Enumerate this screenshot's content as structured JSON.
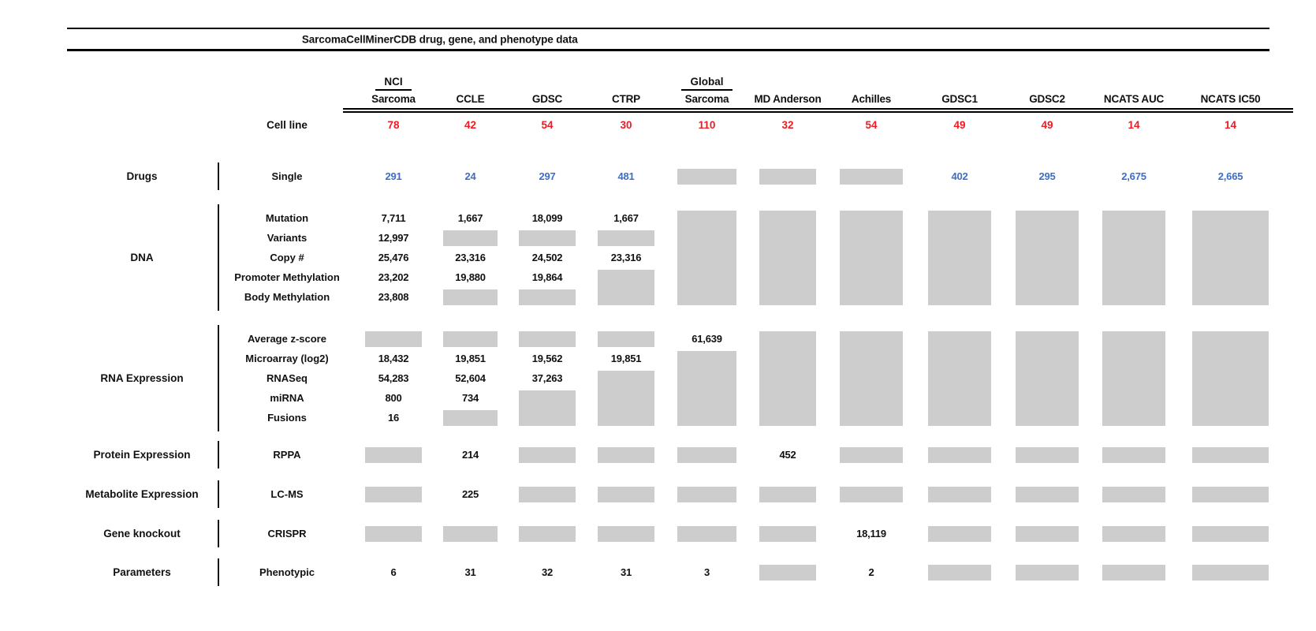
{
  "chart_data": {
    "type": "table",
    "title": "SarcomaCellMinerCDB drug, gene, and phenotype data",
    "missing_data_marker": "gray-box",
    "cell_line_label": "Cell line",
    "cell_line_count_color": "#ed1c24",
    "drug_value_color": "#3e6dc5",
    "missing_box_color": "#cdcdcd",
    "columns": [
      {
        "top": "NCI",
        "name": "Sarcoma",
        "count": "78"
      },
      {
        "top": "",
        "name": "CCLE",
        "count": "42"
      },
      {
        "top": "",
        "name": "GDSC",
        "count": "54"
      },
      {
        "top": "",
        "name": "CTRP",
        "count": "30"
      },
      {
        "top": "Global",
        "name": "Sarcoma",
        "count": "110"
      },
      {
        "top": "",
        "name": "MD Anderson",
        "count": "32"
      },
      {
        "top": "",
        "name": "Achilles",
        "count": "54"
      },
      {
        "top": "",
        "name": "GDSC1",
        "count": "49"
      },
      {
        "top": "",
        "name": "GDSC2",
        "count": "49"
      },
      {
        "top": "",
        "name": "NCATS AUC",
        "count": "14"
      },
      {
        "top": "",
        "name": "NCATS IC50",
        "count": "14"
      }
    ],
    "sections": [
      {
        "category": "Drugs",
        "rows": [
          {
            "label": "Single",
            "cells": [
              {
                "t": "v",
                "v": "291",
                "c": "blue"
              },
              {
                "t": "v",
                "v": "24",
                "c": "blue"
              },
              {
                "t": "v",
                "v": "297",
                "c": "blue"
              },
              {
                "t": "v",
                "v": "481",
                "c": "blue"
              },
              {
                "t": "g"
              },
              {
                "t": "g"
              },
              {
                "t": "g"
              },
              {
                "t": "v",
                "v": "402",
                "c": "blue"
              },
              {
                "t": "v",
                "v": "295",
                "c": "blue"
              },
              {
                "t": "v",
                "v": "2,675",
                "c": "blue"
              },
              {
                "t": "v",
                "v": "2,665",
                "c": "blue"
              }
            ]
          }
        ]
      },
      {
        "category": "DNA",
        "rows": [
          {
            "label": "Mutation",
            "cells": [
              {
                "t": "v",
                "v": "7,711"
              },
              {
                "t": "v",
                "v": "1,667"
              },
              {
                "t": "v",
                "v": "18,099"
              },
              {
                "t": "v",
                "v": "1,667"
              },
              {
                "t": "g",
                "span": 5
              },
              {
                "t": "g",
                "span": 5
              },
              {
                "t": "g",
                "span": 5
              },
              {
                "t": "g",
                "span": 5
              },
              {
                "t": "g",
                "span": 5
              },
              {
                "t": "g",
                "span": 5
              },
              {
                "t": "g",
                "span": 5
              }
            ]
          },
          {
            "label": "Variants",
            "cells": [
              {
                "t": "v",
                "v": "12,997"
              },
              {
                "t": "g"
              },
              {
                "t": "g"
              },
              {
                "t": "g"
              },
              {
                "t": "x"
              },
              {
                "t": "x"
              },
              {
                "t": "x"
              },
              {
                "t": "x"
              },
              {
                "t": "x"
              },
              {
                "t": "x"
              },
              {
                "t": "x"
              }
            ]
          },
          {
            "label": "Copy #",
            "cells": [
              {
                "t": "v",
                "v": "25,476"
              },
              {
                "t": "v",
                "v": "23,316"
              },
              {
                "t": "v",
                "v": "24,502"
              },
              {
                "t": "v",
                "v": "23,316"
              },
              {
                "t": "x"
              },
              {
                "t": "x"
              },
              {
                "t": "x"
              },
              {
                "t": "x"
              },
              {
                "t": "x"
              },
              {
                "t": "x"
              },
              {
                "t": "x"
              }
            ]
          },
          {
            "label": "Promoter Methylation",
            "cells": [
              {
                "t": "v",
                "v": "23,202"
              },
              {
                "t": "v",
                "v": "19,880"
              },
              {
                "t": "v",
                "v": "19,864"
              },
              {
                "t": "g",
                "span": 2
              },
              {
                "t": "x"
              },
              {
                "t": "x"
              },
              {
                "t": "x"
              },
              {
                "t": "x"
              },
              {
                "t": "x"
              },
              {
                "t": "x"
              },
              {
                "t": "x"
              }
            ]
          },
          {
            "label": "Body Methylation",
            "cells": [
              {
                "t": "v",
                "v": "23,808"
              },
              {
                "t": "g"
              },
              {
                "t": "g"
              },
              {
                "t": "x"
              },
              {
                "t": "x"
              },
              {
                "t": "x"
              },
              {
                "t": "x"
              },
              {
                "t": "x"
              },
              {
                "t": "x"
              },
              {
                "t": "x"
              },
              {
                "t": "x"
              }
            ]
          }
        ]
      },
      {
        "category": "RNA Expression",
        "rows": [
          {
            "label": "Average z-score",
            "cells": [
              {
                "t": "g"
              },
              {
                "t": "g"
              },
              {
                "t": "g"
              },
              {
                "t": "g"
              },
              {
                "t": "v",
                "v": "61,639"
              },
              {
                "t": "g",
                "span": 5
              },
              {
                "t": "g",
                "span": 5
              },
              {
                "t": "g",
                "span": 5
              },
              {
                "t": "g",
                "span": 5
              },
              {
                "t": "g",
                "span": 5
              },
              {
                "t": "g",
                "span": 5
              }
            ]
          },
          {
            "label": "Microarray (log2)",
            "cells": [
              {
                "t": "v",
                "v": "18,432"
              },
              {
                "t": "v",
                "v": "19,851"
              },
              {
                "t": "v",
                "v": "19,562"
              },
              {
                "t": "v",
                "v": "19,851"
              },
              {
                "t": "g",
                "span": 4
              },
              {
                "t": "x"
              },
              {
                "t": "x"
              },
              {
                "t": "x"
              },
              {
                "t": "x"
              },
              {
                "t": "x"
              },
              {
                "t": "x"
              }
            ]
          },
          {
            "label": "RNASeq",
            "cells": [
              {
                "t": "v",
                "v": "54,283"
              },
              {
                "t": "v",
                "v": "52,604"
              },
              {
                "t": "v",
                "v": "37,263"
              },
              {
                "t": "g",
                "span": 3
              },
              {
                "t": "x"
              },
              {
                "t": "x"
              },
              {
                "t": "x"
              },
              {
                "t": "x"
              },
              {
                "t": "x"
              },
              {
                "t": "x"
              },
              {
                "t": "x"
              }
            ]
          },
          {
            "label": "miRNA",
            "cells": [
              {
                "t": "v",
                "v": "800"
              },
              {
                "t": "v",
                "v": "734"
              },
              {
                "t": "g",
                "span": 2
              },
              {
                "t": "x"
              },
              {
                "t": "x"
              },
              {
                "t": "x"
              },
              {
                "t": "x"
              },
              {
                "t": "x"
              },
              {
                "t": "x"
              },
              {
                "t": "x"
              },
              {
                "t": "x"
              }
            ]
          },
          {
            "label": "Fusions",
            "cells": [
              {
                "t": "v",
                "v": "16"
              },
              {
                "t": "g"
              },
              {
                "t": "x"
              },
              {
                "t": "x"
              },
              {
                "t": "x"
              },
              {
                "t": "x"
              },
              {
                "t": "x"
              },
              {
                "t": "x"
              },
              {
                "t": "x"
              },
              {
                "t": "x"
              },
              {
                "t": "x"
              }
            ]
          }
        ]
      },
      {
        "category": "Protein Expression",
        "rows": [
          {
            "label": "RPPA",
            "cells": [
              {
                "t": "g"
              },
              {
                "t": "v",
                "v": "214"
              },
              {
                "t": "g"
              },
              {
                "t": "g"
              },
              {
                "t": "g"
              },
              {
                "t": "v",
                "v": "452"
              },
              {
                "t": "g"
              },
              {
                "t": "g"
              },
              {
                "t": "g"
              },
              {
                "t": "g"
              },
              {
                "t": "g"
              }
            ]
          }
        ]
      },
      {
        "category": "Metabolite Expression",
        "rows": [
          {
            "label": "LC-MS",
            "cells": [
              {
                "t": "g"
              },
              {
                "t": "v",
                "v": "225"
              },
              {
                "t": "g"
              },
              {
                "t": "g"
              },
              {
                "t": "g"
              },
              {
                "t": "g"
              },
              {
                "t": "g"
              },
              {
                "t": "g"
              },
              {
                "t": "g"
              },
              {
                "t": "g"
              },
              {
                "t": "g"
              }
            ]
          }
        ]
      },
      {
        "category": "Gene knockout",
        "rows": [
          {
            "label": "CRISPR",
            "cells": [
              {
                "t": "g"
              },
              {
                "t": "g"
              },
              {
                "t": "g"
              },
              {
                "t": "g"
              },
              {
                "t": "g"
              },
              {
                "t": "g"
              },
              {
                "t": "v",
                "v": "18,119"
              },
              {
                "t": "g"
              },
              {
                "t": "g"
              },
              {
                "t": "g"
              },
              {
                "t": "g"
              }
            ]
          }
        ]
      },
      {
        "category": "Parameters",
        "rows": [
          {
            "label": "Phenotypic",
            "cells": [
              {
                "t": "v",
                "v": "6"
              },
              {
                "t": "v",
                "v": "31"
              },
              {
                "t": "v",
                "v": "32"
              },
              {
                "t": "v",
                "v": "31"
              },
              {
                "t": "v",
                "v": "3"
              },
              {
                "t": "g"
              },
              {
                "t": "v",
                "v": "2"
              },
              {
                "t": "g"
              },
              {
                "t": "g"
              },
              {
                "t": "g"
              },
              {
                "t": "g"
              }
            ]
          }
        ]
      }
    ]
  }
}
